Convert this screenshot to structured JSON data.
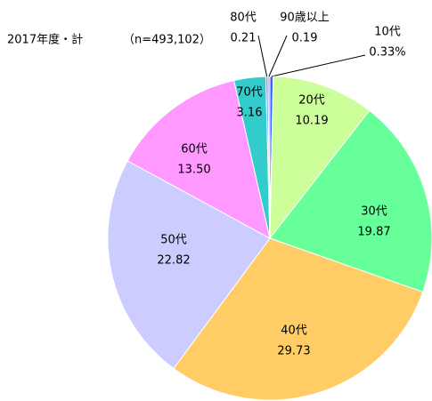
{
  "chart_data": {
    "type": "pie",
    "title": "2017年度・計",
    "subtitle": "（n=493,102）",
    "categories": [
      "10代",
      "20代",
      "30代",
      "40代",
      "50代",
      "60代",
      "70代",
      "80代",
      "90歳以上"
    ],
    "values": [
      0.33,
      10.19,
      19.87,
      29.73,
      22.82,
      13.5,
      3.16,
      0.21,
      0.19
    ],
    "value_labels": [
      "0.33%",
      "10.19",
      "19.87",
      "29.73",
      "22.82",
      "13.50",
      "3.16",
      "0.21",
      "0.19"
    ],
    "colors": [
      "#3366ff",
      "#ccff99",
      "#66ff99",
      "#ffcc66",
      "#ccccff",
      "#ff99ff",
      "#33cccc",
      "#6699ff",
      "#9999ff"
    ]
  }
}
